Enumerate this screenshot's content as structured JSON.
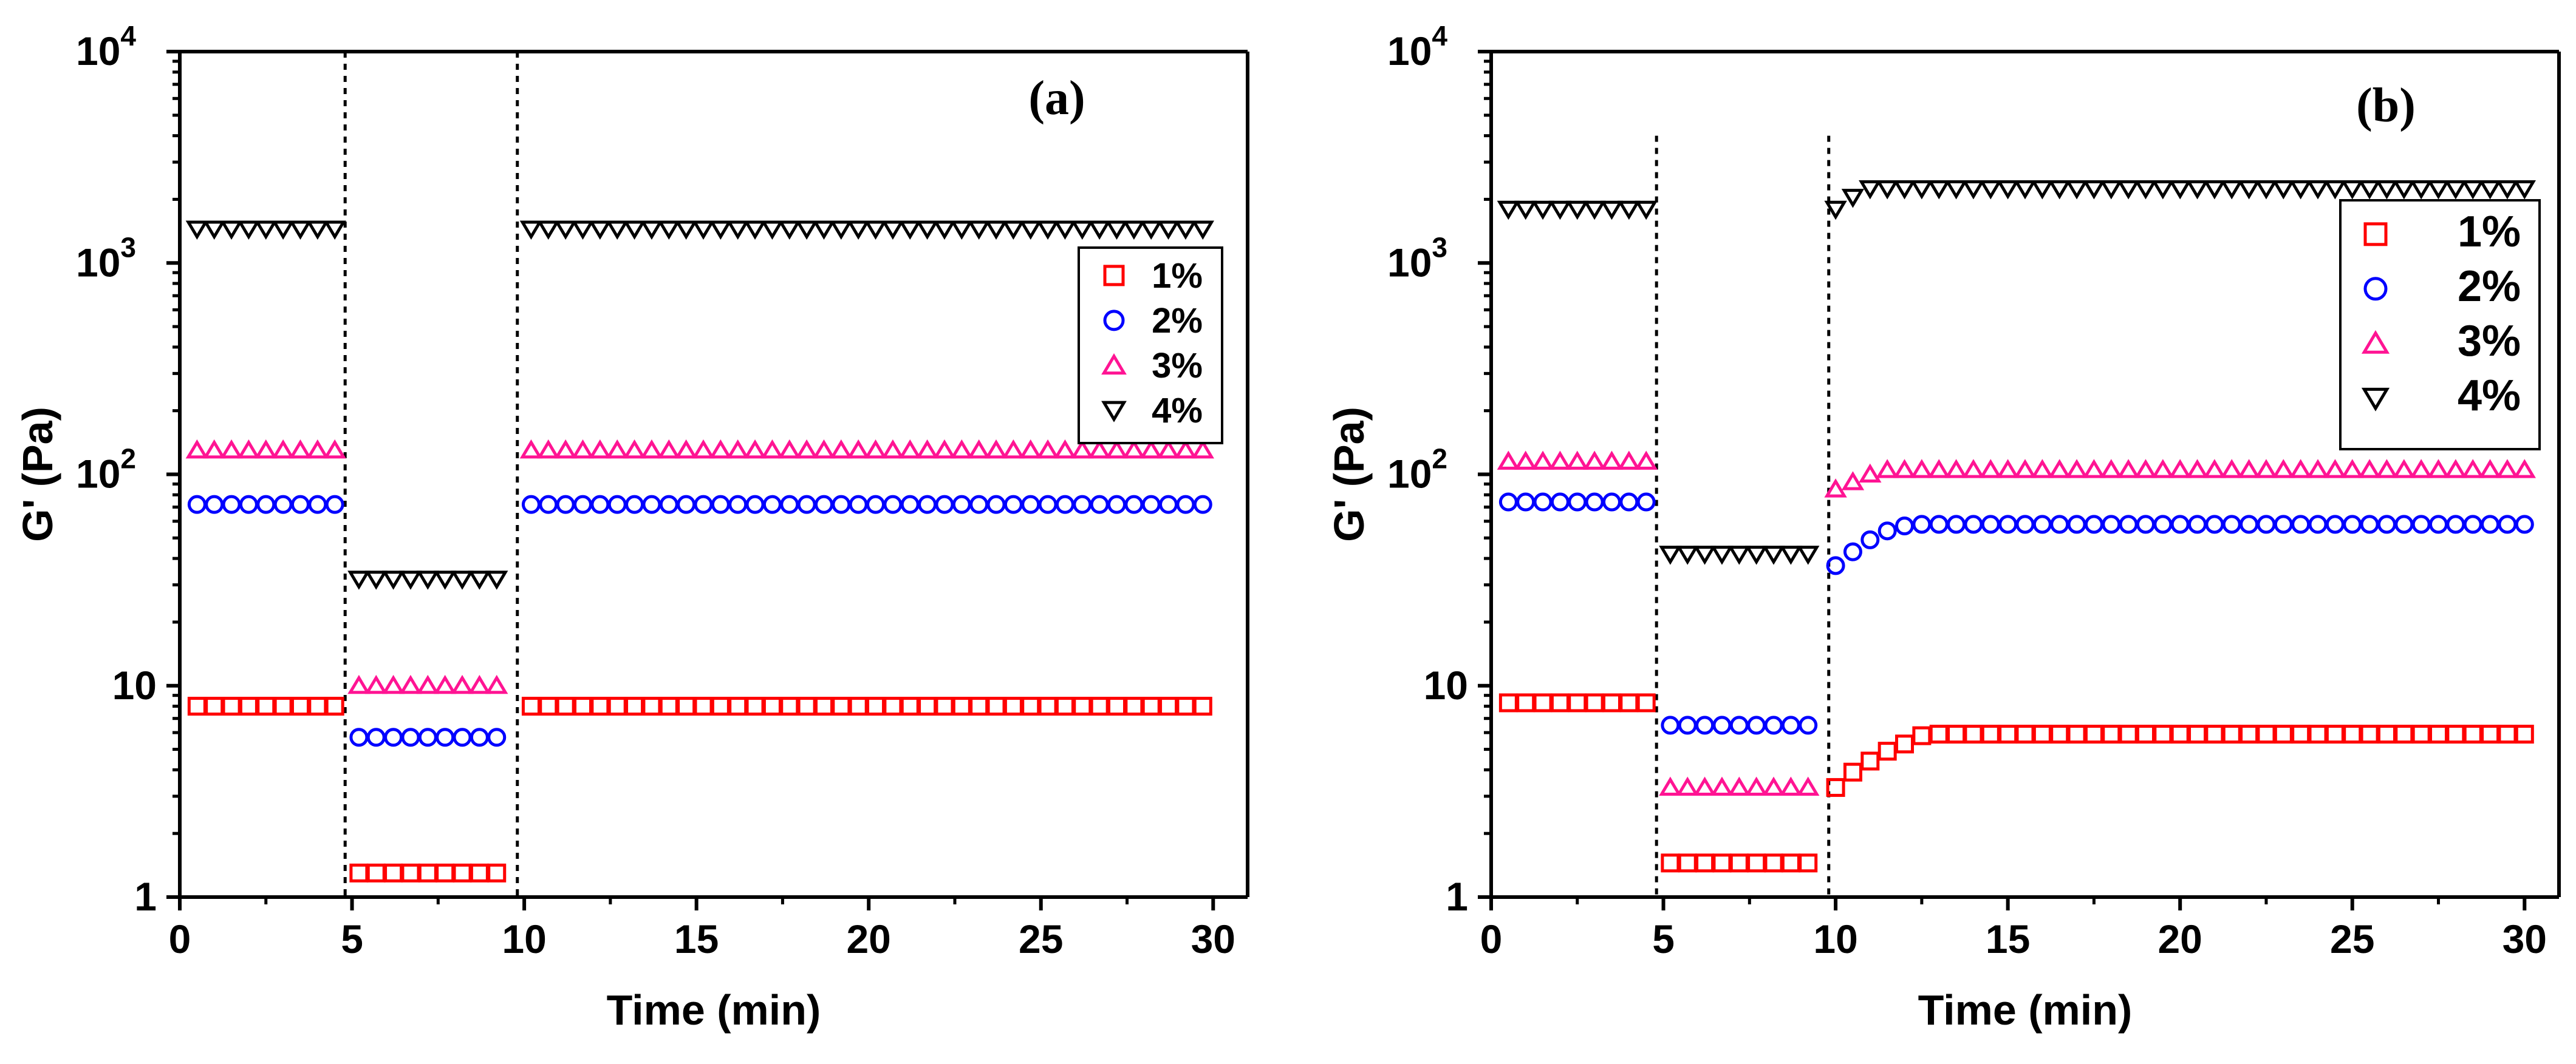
{
  "chart_data": [
    {
      "type": "scatter",
      "panel_label": "(a)",
      "xlabel": "Time (min)",
      "ylabel": "G' (Pa)",
      "yscale": "log",
      "xlim": [
        0,
        31
      ],
      "ylim": [
        1,
        10000
      ],
      "xticks": [
        0,
        5,
        10,
        15,
        20,
        25,
        30
      ],
      "yticks": [
        {
          "value": 1,
          "label": "1"
        },
        {
          "value": 10,
          "label": "10"
        },
        {
          "value": 100,
          "label": "10",
          "sup": "2"
        },
        {
          "value": 1000,
          "label": "10",
          "sup": "3"
        },
        {
          "value": 10000,
          "label": "10",
          "sup": "4"
        }
      ],
      "vlines": [
        4.8,
        9.8
      ],
      "legend_position": "upper-right",
      "series": [
        {
          "name": "1%",
          "marker": "square",
          "color": "#ff0000",
          "segments": [
            {
              "start": 0.5,
              "end": 4.5,
              "step": 0.5,
              "values": [
                8
              ]
            },
            {
              "start": 5.2,
              "end": 9.2,
              "step": 0.5,
              "values": [
                1.3
              ]
            },
            {
              "start": 10.2,
              "end": 30,
              "step": 0.5,
              "values": [
                8
              ]
            }
          ]
        },
        {
          "name": "2%",
          "marker": "circle",
          "color": "#0000ff",
          "segments": [
            {
              "start": 0.5,
              "end": 4.5,
              "step": 0.5,
              "values": [
                72
              ]
            },
            {
              "start": 5.2,
              "end": 9.2,
              "step": 0.5,
              "values": [
                5.7
              ]
            },
            {
              "start": 10.2,
              "end": 30,
              "step": 0.5,
              "values": [
                72
              ]
            }
          ]
        },
        {
          "name": "3%",
          "marker": "triangle-up",
          "color": "#ff1493",
          "segments": [
            {
              "start": 0.5,
              "end": 4.5,
              "step": 0.5,
              "values": [
                130
              ]
            },
            {
              "start": 5.2,
              "end": 9.2,
              "step": 0.5,
              "values": [
                10
              ]
            },
            {
              "start": 10.2,
              "end": 30,
              "step": 0.5,
              "values": [
                130
              ]
            }
          ]
        },
        {
          "name": "4%",
          "marker": "triangle-down",
          "color": "#000000",
          "segments": [
            {
              "start": 0.5,
              "end": 4.5,
              "step": 0.5,
              "values": [
                1450
              ]
            },
            {
              "start": 5.2,
              "end": 9.2,
              "step": 0.5,
              "values": [
                32
              ]
            },
            {
              "start": 10.2,
              "end": 30,
              "step": 0.5,
              "values": [
                1450
              ]
            }
          ]
        }
      ]
    },
    {
      "type": "scatter",
      "panel_label": "(b)",
      "xlabel": "Time (min)",
      "ylabel": "G' (Pa)",
      "yscale": "log",
      "xlim": [
        0,
        31
      ],
      "ylim": [
        1,
        10000
      ],
      "xticks": [
        0,
        5,
        10,
        15,
        20,
        25,
        30
      ],
      "yticks": [
        {
          "value": 1,
          "label": "1"
        },
        {
          "value": 10,
          "label": "10"
        },
        {
          "value": 100,
          "label": "10",
          "sup": "2"
        },
        {
          "value": 1000,
          "label": "10",
          "sup": "3"
        },
        {
          "value": 10000,
          "label": "10",
          "sup": "4"
        }
      ],
      "vlines": [
        4.8,
        9.8
      ],
      "legend_position": "upper-right",
      "series": [
        {
          "name": "1%",
          "marker": "square",
          "color": "#ff0000",
          "segments": [
            {
              "start": 0.5,
              "end": 4.5,
              "step": 0.5,
              "values": [
                8.3
              ]
            },
            {
              "start": 5.2,
              "end": 9.2,
              "step": 0.5,
              "values": [
                1.45
              ]
            },
            {
              "start": 10.0,
              "end": 30,
              "step": 0.5,
              "values": [
                3.3,
                3.9,
                4.4,
                4.9,
                5.3,
                5.8,
                5.9
              ]
            }
          ]
        },
        {
          "name": "2%",
          "marker": "circle",
          "color": "#0000ff",
          "segments": [
            {
              "start": 0.5,
              "end": 4.5,
              "step": 0.5,
              "values": [
                74
              ]
            },
            {
              "start": 5.2,
              "end": 9.2,
              "step": 0.5,
              "values": [
                6.5
              ]
            },
            {
              "start": 10.0,
              "end": 30,
              "step": 0.5,
              "values": [
                37,
                43,
                49,
                54,
                57,
                58
              ]
            }
          ]
        },
        {
          "name": "3%",
          "marker": "triangle-up",
          "color": "#ff1493",
          "segments": [
            {
              "start": 0.5,
              "end": 4.5,
              "step": 0.5,
              "values": [
                115
              ]
            },
            {
              "start": 5.2,
              "end": 9.2,
              "step": 0.5,
              "values": [
                3.3
              ]
            },
            {
              "start": 10.0,
              "end": 30,
              "step": 0.5,
              "values": [
                85,
                92,
                100,
                105
              ]
            }
          ]
        },
        {
          "name": "4%",
          "marker": "triangle-down",
          "color": "#000000",
          "segments": [
            {
              "start": 0.5,
              "end": 4.5,
              "step": 0.5,
              "values": [
                1800
              ]
            },
            {
              "start": 5.2,
              "end": 9.2,
              "step": 0.5,
              "values": [
                42
              ]
            },
            {
              "start": 10.0,
              "end": 30,
              "step": 0.5,
              "values": [
                1800,
                2050,
                2250
              ]
            }
          ]
        }
      ]
    }
  ]
}
